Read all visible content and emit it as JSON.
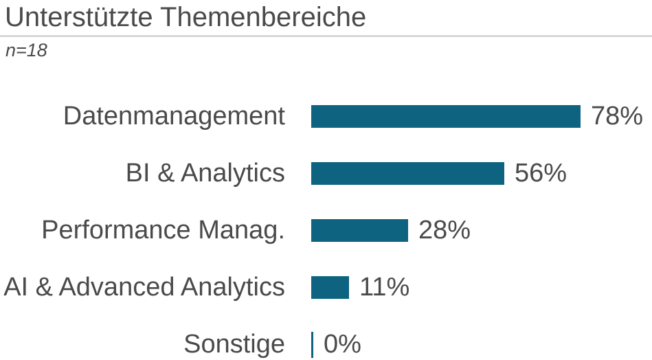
{
  "header": {
    "title": "Unterstützte Themenbereiche",
    "subtitle": "n=18"
  },
  "colors": {
    "bar": "#0d6380",
    "text": "#4a4a4a",
    "divider": "#d7d7d7",
    "background": "#ffffff"
  },
  "chart_data": {
    "type": "bar",
    "orientation": "horizontal",
    "title": "Unterstützte Themenbereiche",
    "subtitle": "n=18",
    "sample_size": "n=18",
    "unit": "%",
    "categories": [
      "Datenmanagement",
      "BI & Analytics",
      "Performance Manag.",
      "AI & Advanced Analytics",
      "Sonstige"
    ],
    "values": [
      78,
      56,
      28,
      11,
      0
    ],
    "value_labels": [
      "78%",
      "56%",
      "28%",
      "11%",
      "0%"
    ],
    "xlim": [
      0,
      100
    ],
    "grid": false,
    "legend": false,
    "value_label_position": "end-of-bar",
    "category_label_position": "left"
  }
}
